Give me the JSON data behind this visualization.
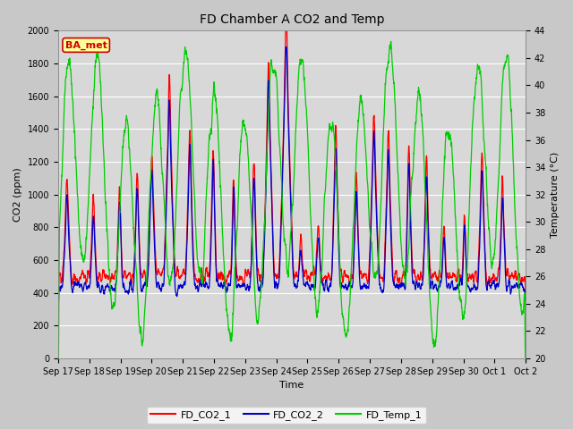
{
  "title": "FD Chamber A CO2 and Temp",
  "xlabel": "Time",
  "ylabel_left": "CO2 (ppm)",
  "ylabel_right": "Temperature (°C)",
  "ylim_left": [
    0,
    2000
  ],
  "ylim_right": [
    20,
    44
  ],
  "yticks_left": [
    0,
    200,
    400,
    600,
    800,
    1000,
    1200,
    1400,
    1600,
    1800,
    2000
  ],
  "yticks_right": [
    20,
    22,
    24,
    26,
    28,
    30,
    32,
    34,
    36,
    38,
    40,
    42,
    44
  ],
  "xtick_labels": [
    "Sep 17",
    "Sep 18",
    "Sep 19",
    "Sep 20",
    "Sep 21",
    "Sep 22",
    "Sep 23",
    "Sep 24",
    "Sep 25",
    "Sep 26",
    "Sep 27",
    "Sep 28",
    "Sep 29",
    "Sep 30",
    "Oct 1",
    "Oct 2"
  ],
  "legend_labels": [
    "FD_CO2_1",
    "FD_CO2_2",
    "FD_Temp_1"
  ],
  "legend_colors": [
    "#ff0000",
    "#0000cc",
    "#00cc00"
  ],
  "annotation_text": "BA_met",
  "annotation_color": "#cc0000",
  "annotation_bg": "#ffff99",
  "fig_bg_color": "#c8c8c8",
  "plot_bg_color": "#d8d8d8",
  "line_colors": [
    "#ff0000",
    "#0000cc",
    "#00cc00"
  ],
  "figsize": [
    6.4,
    4.8
  ],
  "dpi": 100
}
